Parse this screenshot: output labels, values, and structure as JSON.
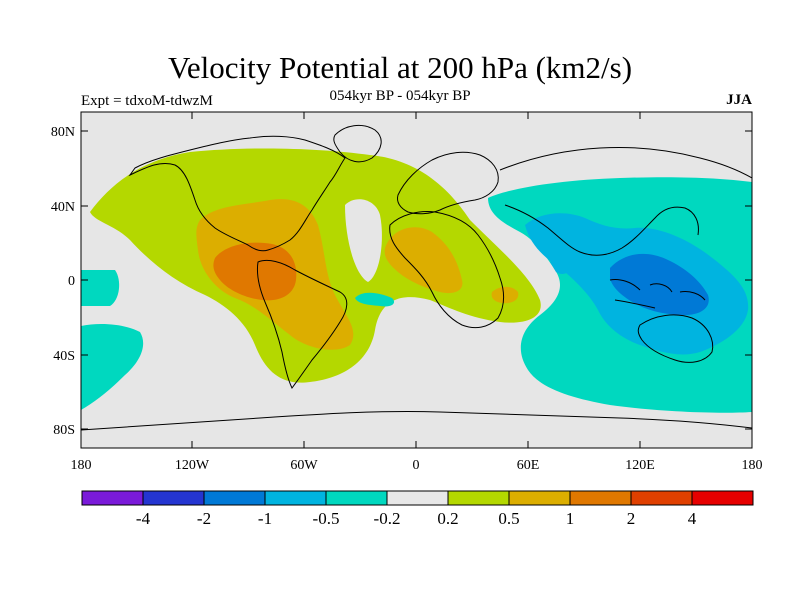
{
  "header": {
    "title": "Velocity Potential at 200 hPa (km2/s)",
    "subtitle": "054kyr BP - 054kyr BP",
    "left_label": "Expt = tdxoM-tdwzM",
    "right_label": "JJA"
  },
  "map": {
    "background_color": "#e6e6e6",
    "lat_ticks": [
      "80N",
      "40N",
      "0",
      "40S",
      "80S"
    ],
    "lon_ticks": [
      "180",
      "120W",
      "60W",
      "0",
      "60E",
      "120E",
      "180"
    ]
  },
  "colorbar": {
    "colors": [
      "#7a1ad9",
      "#2435d1",
      "#0079d6",
      "#00b4e0",
      "#00d8bf",
      "#e8e8e8",
      "#b4d800",
      "#dcae00",
      "#e07800",
      "#e04000",
      "#e60000"
    ],
    "labels": [
      "-4",
      "-2",
      "-1",
      "-0.5",
      "-0.2",
      "0.2",
      "0.5",
      "1",
      "2",
      "4"
    ]
  }
}
